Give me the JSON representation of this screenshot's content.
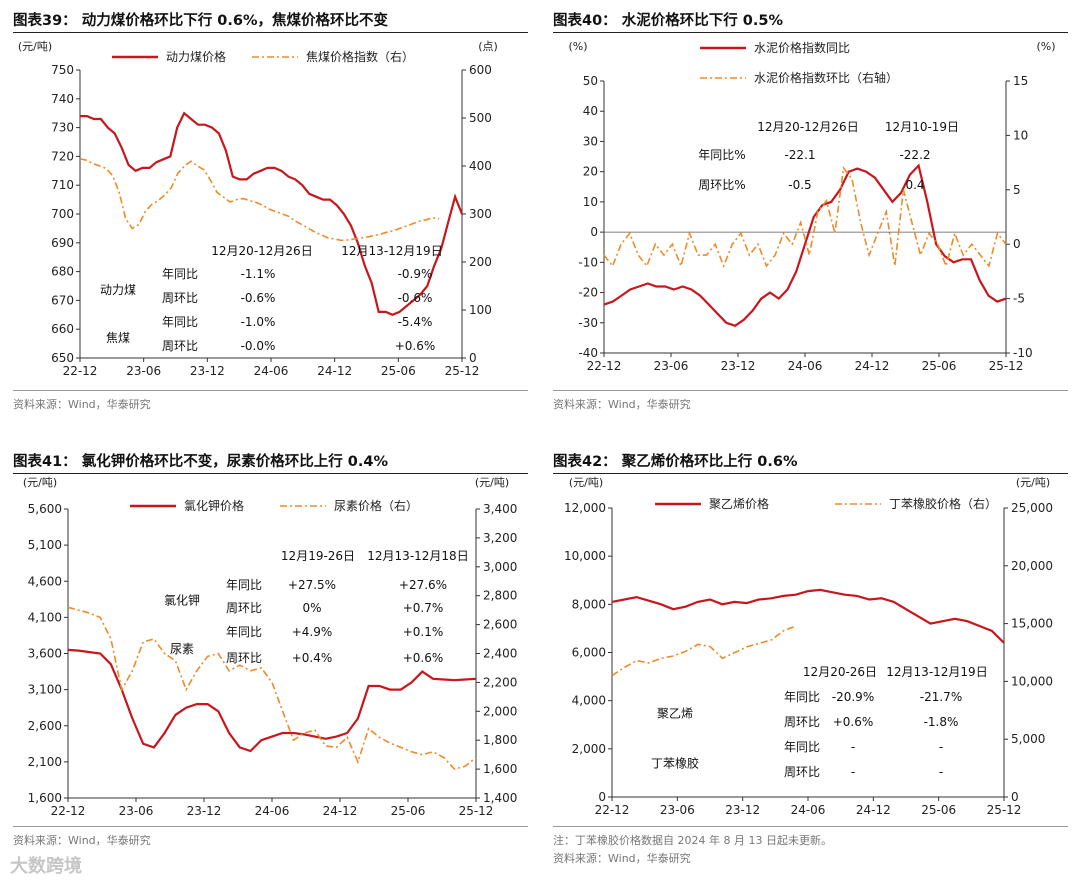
{
  "watermark": "大数跨境",
  "source_text": "资料来源：Wind，华泰研究",
  "note_text": "注：丁苯橡胶价格数据自 2024 年 8 月 13 日起未更新。",
  "chart_data": [
    {
      "type": "line",
      "title": "图表39：  动力煤价格环比下行 0.6%，焦煤价格环比不变",
      "ylabel_left": "(元/吨)",
      "ylabel_right": "(点)",
      "ylim_left": [
        650,
        750
      ],
      "ylim_right": [
        0,
        600
      ],
      "yticks_left": [
        "650",
        "660",
        "670",
        "680",
        "690",
        "700",
        "710",
        "720",
        "730",
        "740",
        "750"
      ],
      "yticks_right": [
        "0",
        "100",
        "200",
        "300",
        "400",
        "500",
        "600"
      ],
      "xticks": [
        "22-12",
        "23-06",
        "23-12",
        "24-06",
        "24-12",
        "25-06",
        "25-12"
      ],
      "series": [
        {
          "name": "动力煤价格",
          "axis": "left",
          "color": "#c8161d",
          "style": "solid",
          "values": [
            734,
            734,
            733,
            733,
            730,
            728,
            723,
            717,
            715,
            716,
            716,
            718,
            719,
            720,
            730,
            735,
            733,
            731,
            731,
            730,
            728,
            722,
            713,
            712,
            712,
            714,
            715,
            716,
            716,
            715,
            713,
            712,
            710,
            707,
            706,
            705,
            705,
            703,
            700,
            696,
            690,
            682,
            676,
            666,
            666,
            665,
            666,
            668,
            670,
            672,
            675,
            682,
            688,
            697,
            706,
            700
          ]
        },
        {
          "name": "焦煤价格指数（右）",
          "axis": "right",
          "color": "#ef8a2a",
          "style": "dashdot",
          "values": [
            415,
            412,
            405,
            400,
            395,
            380,
            345,
            290,
            270,
            278,
            305,
            320,
            328,
            340,
            355,
            385,
            400,
            410,
            400,
            392,
            370,
            345,
            335,
            325,
            330,
            332,
            328,
            324,
            318,
            310,
            305,
            300,
            295,
            285,
            278,
            270,
            262,
            256,
            250,
            248,
            245,
            246,
            248,
            250,
            252,
            255,
            258,
            262,
            265,
            270,
            275,
            280,
            285,
            288,
            292,
            290
          ]
        }
      ],
      "table": {
        "header_1": "12月20-12月26日",
        "header_2": "12月13-12月19日",
        "rows": [
          {
            "group": "动力煤",
            "label": "年同比",
            "v1": "-1.1%",
            "v2": "-0.9%"
          },
          {
            "group": "",
            "label": "周环比",
            "v1": "-0.6%",
            "v2": "-0.6%"
          },
          {
            "group": "焦煤",
            "label": "年同比",
            "v1": "-1.0%",
            "v2": "-5.4%"
          },
          {
            "group": "",
            "label": "周环比",
            "v1": "-0.0%",
            "v2": "+0.6%"
          }
        ]
      }
    },
    {
      "type": "line",
      "title": "图表40：  水泥价格环比下行 0.5%",
      "ylabel_left": "(%)",
      "ylabel_right": "(%)",
      "ylim_left": [
        -40,
        50
      ],
      "ylim_right": [
        -10,
        15
      ],
      "yticks_left": [
        "-40",
        "-30",
        "-20",
        "-10",
        "0",
        "10",
        "20",
        "30",
        "40",
        "50"
      ],
      "yticks_right": [
        "-10",
        "-5",
        "0",
        "5",
        "10",
        "15"
      ],
      "xticks": [
        "22-12",
        "23-06",
        "23-12",
        "24-06",
        "24-12",
        "25-06",
        "25-12"
      ],
      "series": [
        {
          "name": "水泥价格指数同比",
          "axis": "left",
          "color": "#c8161d",
          "style": "solid",
          "values": [
            -24,
            -23,
            -21,
            -19,
            -18,
            -17,
            -18,
            -18,
            -19,
            -18,
            -19,
            -21,
            -24,
            -27,
            -30,
            -31,
            -29,
            -26,
            -22,
            -20,
            -22,
            -19,
            -13,
            -4,
            5,
            9,
            10,
            14,
            20,
            21,
            20,
            18,
            14,
            10,
            13,
            19,
            22,
            10,
            -4,
            -8,
            -10,
            -9,
            -9,
            -16,
            -21,
            -23,
            -22
          ]
        },
        {
          "name": "水泥价格指数环比（右轴）",
          "axis": "right",
          "color": "#ef8a2a",
          "style": "dashdot",
          "values": [
            -1,
            -2,
            0,
            1,
            -1,
            -2,
            0,
            -1,
            0,
            -2,
            1,
            -1,
            -1,
            0,
            -2,
            0,
            1,
            -1,
            0,
            -2,
            -1,
            1,
            0,
            2,
            -1,
            3,
            4,
            1,
            7,
            6,
            2,
            -1,
            1,
            3,
            -2,
            5,
            2,
            -1,
            1,
            0,
            -2,
            1,
            -1,
            0,
            -1,
            -2,
            1,
            0
          ]
        }
      ],
      "table": {
        "header_1": "12月20-12月26日",
        "header_2": "12月10-19日",
        "rows": [
          {
            "label": "年同比%",
            "v1": "-22.1",
            "v2": "-22.2"
          },
          {
            "label": "周环比%",
            "v1": "-0.5",
            "v2": "0.4"
          }
        ]
      }
    },
    {
      "type": "line",
      "title": "图表41：  氯化钾价格环比不变，尿素价格环比上行 0.4%",
      "ylabel_left": "(元/吨)",
      "ylabel_right": "(元/吨)",
      "ylim_left": [
        1600,
        5600
      ],
      "ylim_right": [
        1400,
        3400
      ],
      "yticks_left": [
        "1,600",
        "2,100",
        "2,600",
        "3,100",
        "3,600",
        "4,100",
        "4,600",
        "5,100",
        "5,600"
      ],
      "yticks_right": [
        "1,400",
        "1,600",
        "1,800",
        "2,000",
        "2,200",
        "2,400",
        "2,600",
        "2,800",
        "3,000",
        "3,200",
        "3,400"
      ],
      "xticks": [
        "22-12",
        "23-06",
        "23-12",
        "24-06",
        "24-12",
        "25-06",
        "25-12"
      ],
      "series": [
        {
          "name": "氯化钾价格",
          "axis": "left",
          "color": "#c8161d",
          "style": "solid",
          "values": [
            3650,
            3640,
            3620,
            3600,
            3450,
            3100,
            2700,
            2350,
            2300,
            2500,
            2750,
            2850,
            2900,
            2900,
            2800,
            2500,
            2300,
            2250,
            2400,
            2450,
            2500,
            2500,
            2480,
            2450,
            2420,
            2450,
            2500,
            2700,
            3150,
            3150,
            3100,
            3100,
            3200,
            3350,
            3250,
            3240,
            3230,
            3240,
            3250
          ]
        },
        {
          "name": "尿素价格（右）",
          "axis": "right",
          "color": "#ef8a2a",
          "style": "dashdot",
          "values": [
            2720,
            2700,
            2680,
            2650,
            2500,
            2150,
            2280,
            2480,
            2500,
            2400,
            2350,
            2150,
            2280,
            2380,
            2400,
            2280,
            2320,
            2280,
            2300,
            2200,
            2000,
            1800,
            1850,
            1870,
            1760,
            1750,
            1820,
            1650,
            1880,
            1820,
            1780,
            1750,
            1720,
            1700,
            1720,
            1680,
            1600,
            1620,
            1680
          ]
        }
      ],
      "table": {
        "header_1": "12月19-26日",
        "header_2": "12月13-12月18日",
        "rows": [
          {
            "group": "氯化钾",
            "label": "年同比",
            "v1": "+27.5%",
            "v2": "+27.6%"
          },
          {
            "group": "",
            "label": "周环比",
            "v1": "0%",
            "v2": "+0.7%"
          },
          {
            "group": "尿素",
            "label": "年同比",
            "v1": "+4.9%",
            "v2": "+0.1%"
          },
          {
            "group": "",
            "label": "周环比",
            "v1": "+0.4%",
            "v2": "+0.6%"
          }
        ]
      }
    },
    {
      "type": "line",
      "title": "图表42：  聚乙烯价格环比上行 0.6%",
      "ylabel_left": "(元/吨)",
      "ylabel_right": "(元/吨)",
      "ylim_left": [
        0,
        12000
      ],
      "ylim_right": [
        0,
        25000
      ],
      "yticks_left": [
        "0",
        "2,000",
        "4,000",
        "6,000",
        "8,000",
        "10,000",
        "12,000"
      ],
      "yticks_right": [
        "0",
        "5,000",
        "10,000",
        "15,000",
        "20,000",
        "25,000"
      ],
      "xticks": [
        "22-12",
        "23-06",
        "23-12",
        "24-06",
        "24-12",
        "25-06",
        "25-12"
      ],
      "series": [
        {
          "name": "聚乙烯价格",
          "axis": "left",
          "color": "#c8161d",
          "style": "solid",
          "values": [
            8100,
            8200,
            8300,
            8150,
            8000,
            7800,
            7900,
            8100,
            8200,
            8000,
            8100,
            8050,
            8200,
            8250,
            8350,
            8400,
            8550,
            8600,
            8500,
            8400,
            8350,
            8200,
            8250,
            8100,
            7800,
            7500,
            7200,
            7300,
            7400,
            7300,
            7100,
            6900,
            6400
          ]
        },
        {
          "name": "丁苯橡胶价格（右）",
          "axis": "right",
          "color": "#ef8a2a",
          "style": "dashdot",
          "values": [
            10500,
            11200,
            11800,
            11600,
            12000,
            12200,
            12600,
            13200,
            13000,
            12000,
            12500,
            13000,
            13300,
            13600,
            14400,
            14800
          ]
        }
      ],
      "table": {
        "header_1": "12月20-26日",
        "header_2": "12月13-12月19日",
        "rows": [
          {
            "group": "聚乙烯",
            "label": "年同比",
            "v1": "-20.9%",
            "v2": "-21.7%"
          },
          {
            "group": "",
            "label": "周环比",
            "v1": "+0.6%",
            "v2": "-1.8%"
          },
          {
            "group": "丁苯橡胶",
            "label": "年同比",
            "v1": "-",
            "v2": "-"
          },
          {
            "group": "",
            "label": "周环比",
            "v1": "-",
            "v2": "-"
          }
        ]
      }
    }
  ]
}
